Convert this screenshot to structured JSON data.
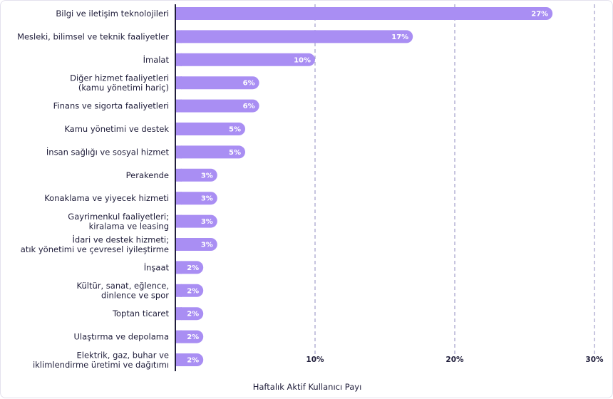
{
  "chart_data": {
    "type": "bar",
    "orientation": "horizontal",
    "categories": [
      [
        "Bilgi ve iletişim teknolojileri"
      ],
      [
        "Mesleki, bilimsel ve teknik faaliyetler"
      ],
      [
        "İmalat"
      ],
      [
        "Diğer hizmet faaliyetleri",
        "(kamu yönetimi hariç)"
      ],
      [
        "Finans ve sigorta faaliyetleri"
      ],
      [
        "Kamu yönetimi ve destek"
      ],
      [
        "İnsan sağlığı ve sosyal hizmet"
      ],
      [
        "Perakende"
      ],
      [
        "Konaklama ve yiyecek hizmeti"
      ],
      [
        "Gayrimenkul faaliyetleri;",
        "kiralama ve leasing"
      ],
      [
        "İdari ve destek hizmeti;",
        "atık yönetimi ve çevresel iyileştirme"
      ],
      [
        "İnşaat"
      ],
      [
        "Kültür, sanat, eğlence,",
        "dinlence ve spor"
      ],
      [
        "Toptan ticaret"
      ],
      [
        "Ulaştırma ve depolama"
      ],
      [
        "Elektrik, gaz, buhar ve",
        "iklimlendirme üretimi ve dağıtımı"
      ]
    ],
    "values": [
      27,
      17,
      10,
      6,
      6,
      5,
      5,
      3,
      3,
      3,
      3,
      2,
      2,
      2,
      2,
      2
    ],
    "value_labels": [
      "27%",
      "17%",
      "10%",
      "6%",
      "6%",
      "5%",
      "5%",
      "3%",
      "3%",
      "3%",
      "3%",
      "2%",
      "2%",
      "2%",
      "2%",
      "2%"
    ],
    "xlim": [
      0,
      30
    ],
    "xticks": [
      10,
      20,
      30
    ],
    "xtick_labels": [
      "10%",
      "20%",
      "30%"
    ],
    "xlabel": "Haftalık Aktif Kullanıcı Payı",
    "grid": "vertical dashed",
    "colors": {
      "bar": "#a98ef3",
      "bar_label": "#ffffff",
      "grid": "#8f8bbf",
      "axis": "#1f1d3a",
      "text": "#1f1d3a",
      "border": "#e4e1ee"
    }
  }
}
